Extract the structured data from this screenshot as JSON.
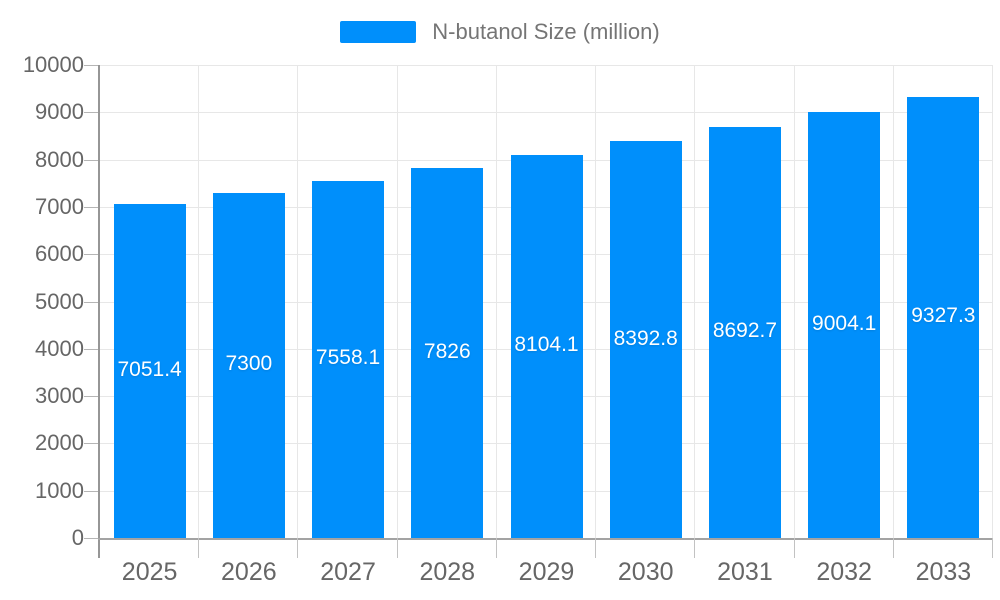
{
  "legend": {
    "label": "N-butanol Size (million)"
  },
  "chart_data": {
    "type": "bar",
    "title": "",
    "series_name": "N-butanol Size (million)",
    "categories": [
      "2025",
      "2026",
      "2027",
      "2028",
      "2029",
      "2030",
      "2031",
      "2032",
      "2033"
    ],
    "values": [
      7051.4,
      7300,
      7558.1,
      7826,
      8104.1,
      8392.8,
      8692.7,
      9004.1,
      9327.3
    ],
    "bar_labels": [
      "7051.4",
      "7300",
      "7558.1",
      "7826",
      "8104.1",
      "8392.8",
      "8692.7",
      "9004.1",
      "9327.3"
    ],
    "xlabel": "",
    "ylabel": "",
    "ylim": [
      0,
      10000
    ],
    "yticks": [
      0,
      1000,
      2000,
      3000,
      4000,
      5000,
      6000,
      7000,
      8000,
      9000,
      10000
    ],
    "grid": true,
    "legend_position": "top",
    "colors": {
      "bar": "#008FFB",
      "bar_label_text": "#ffffff",
      "axis_label": "#666666",
      "legend_text": "#757575",
      "gridline": "#e7e7e7",
      "axis_line": "#a3a3a3",
      "tick": "#c2c2c2",
      "background": "#ffffff"
    }
  }
}
